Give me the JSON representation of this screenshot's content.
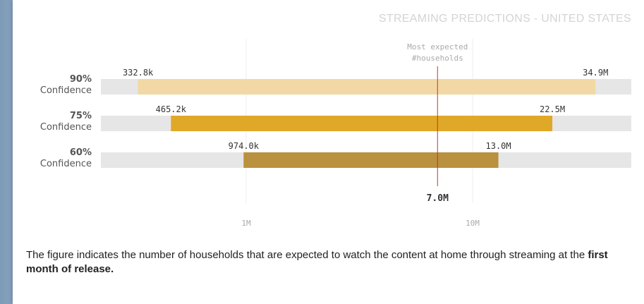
{
  "chart_data": {
    "type": "bar",
    "orientation": "horizontal-range",
    "title": "STREAMING PREDICTIONS - UNITED STATES",
    "scale": "log",
    "xlim": [
      100000,
      35000000
    ],
    "ticks": [
      {
        "value": 1000000,
        "label": "1M"
      },
      {
        "value": 10000000,
        "label": "10M"
      }
    ],
    "grid": true,
    "series": [
      {
        "pct": "90%",
        "label": "Confidence",
        "low": 332800,
        "high": 34900000,
        "low_label": "332.8k",
        "high_label": "34.9M",
        "color": "#f2d8a4"
      },
      {
        "pct": "75%",
        "label": "Confidence",
        "low": 465200,
        "high": 22500000,
        "low_label": "465.2k",
        "high_label": "22.5M",
        "color": "#e0a828"
      },
      {
        "pct": "60%",
        "label": "Confidence",
        "low": 974000,
        "high": 13000000,
        "low_label": "974.0k",
        "high_label": "13.0M",
        "color": "#b9913f"
      }
    ],
    "expected": {
      "value": 7000000,
      "label": "7.0M",
      "annotation_line1": "Most expected",
      "annotation_line2": "#households",
      "color": "#c0392b"
    }
  },
  "caption": {
    "text_before": "The figure indicates the number of households that are expected to watch the content at home through streaming at the ",
    "bold": "first month of release."
  },
  "colors": {
    "track": "#e6e6e6",
    "grid": "#ececec",
    "label": "#555555",
    "tick": "#aaaaaa"
  }
}
